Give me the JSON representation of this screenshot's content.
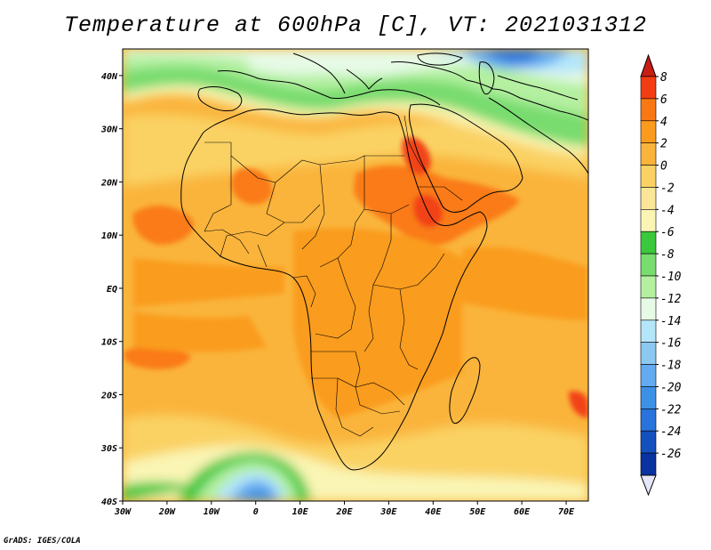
{
  "title": "Temperature at 600hPa [C], VT: 2021031312",
  "credit": "GrADS: IGES/COLA",
  "map": {
    "variable": "Temperature",
    "level": "600hPa",
    "units": "C",
    "valid_time": "2021031312",
    "lon_range": [
      -30,
      75
    ],
    "lat_range": [
      -40,
      45
    ],
    "lon_ticks": [
      "30W",
      "20W",
      "10W",
      "0",
      "10E",
      "20E",
      "30E",
      "40E",
      "50E",
      "60E",
      "70E"
    ],
    "lat_ticks": [
      "40N",
      "30N",
      "20N",
      "10N",
      "EQ",
      "10S",
      "20S",
      "30S",
      "40S"
    ]
  },
  "colorbar": {
    "labels": [
      "8",
      "6",
      "4",
      "2",
      "0",
      "-2",
      "-4",
      "-6",
      "-8",
      "-10",
      "-12",
      "-14",
      "-16",
      "-18",
      "-20",
      "-22",
      "-24",
      "-26"
    ],
    "colors": [
      "#f23c14",
      "#fa7814",
      "#fa9b1e",
      "#fab43c",
      "#fad264",
      "#fae696",
      "#faf5b4",
      "#3cc83c",
      "#78dc6e",
      "#b4f0a0",
      "#e6fae6",
      "#b4e6fa",
      "#8cc8f0",
      "#64aaf0",
      "#3c91e6",
      "#2873dc",
      "#1450be",
      "#0a32a0"
    ],
    "top_arrow_color": "#c81e14",
    "bottom_arrow_color": "#e6e6fa"
  }
}
